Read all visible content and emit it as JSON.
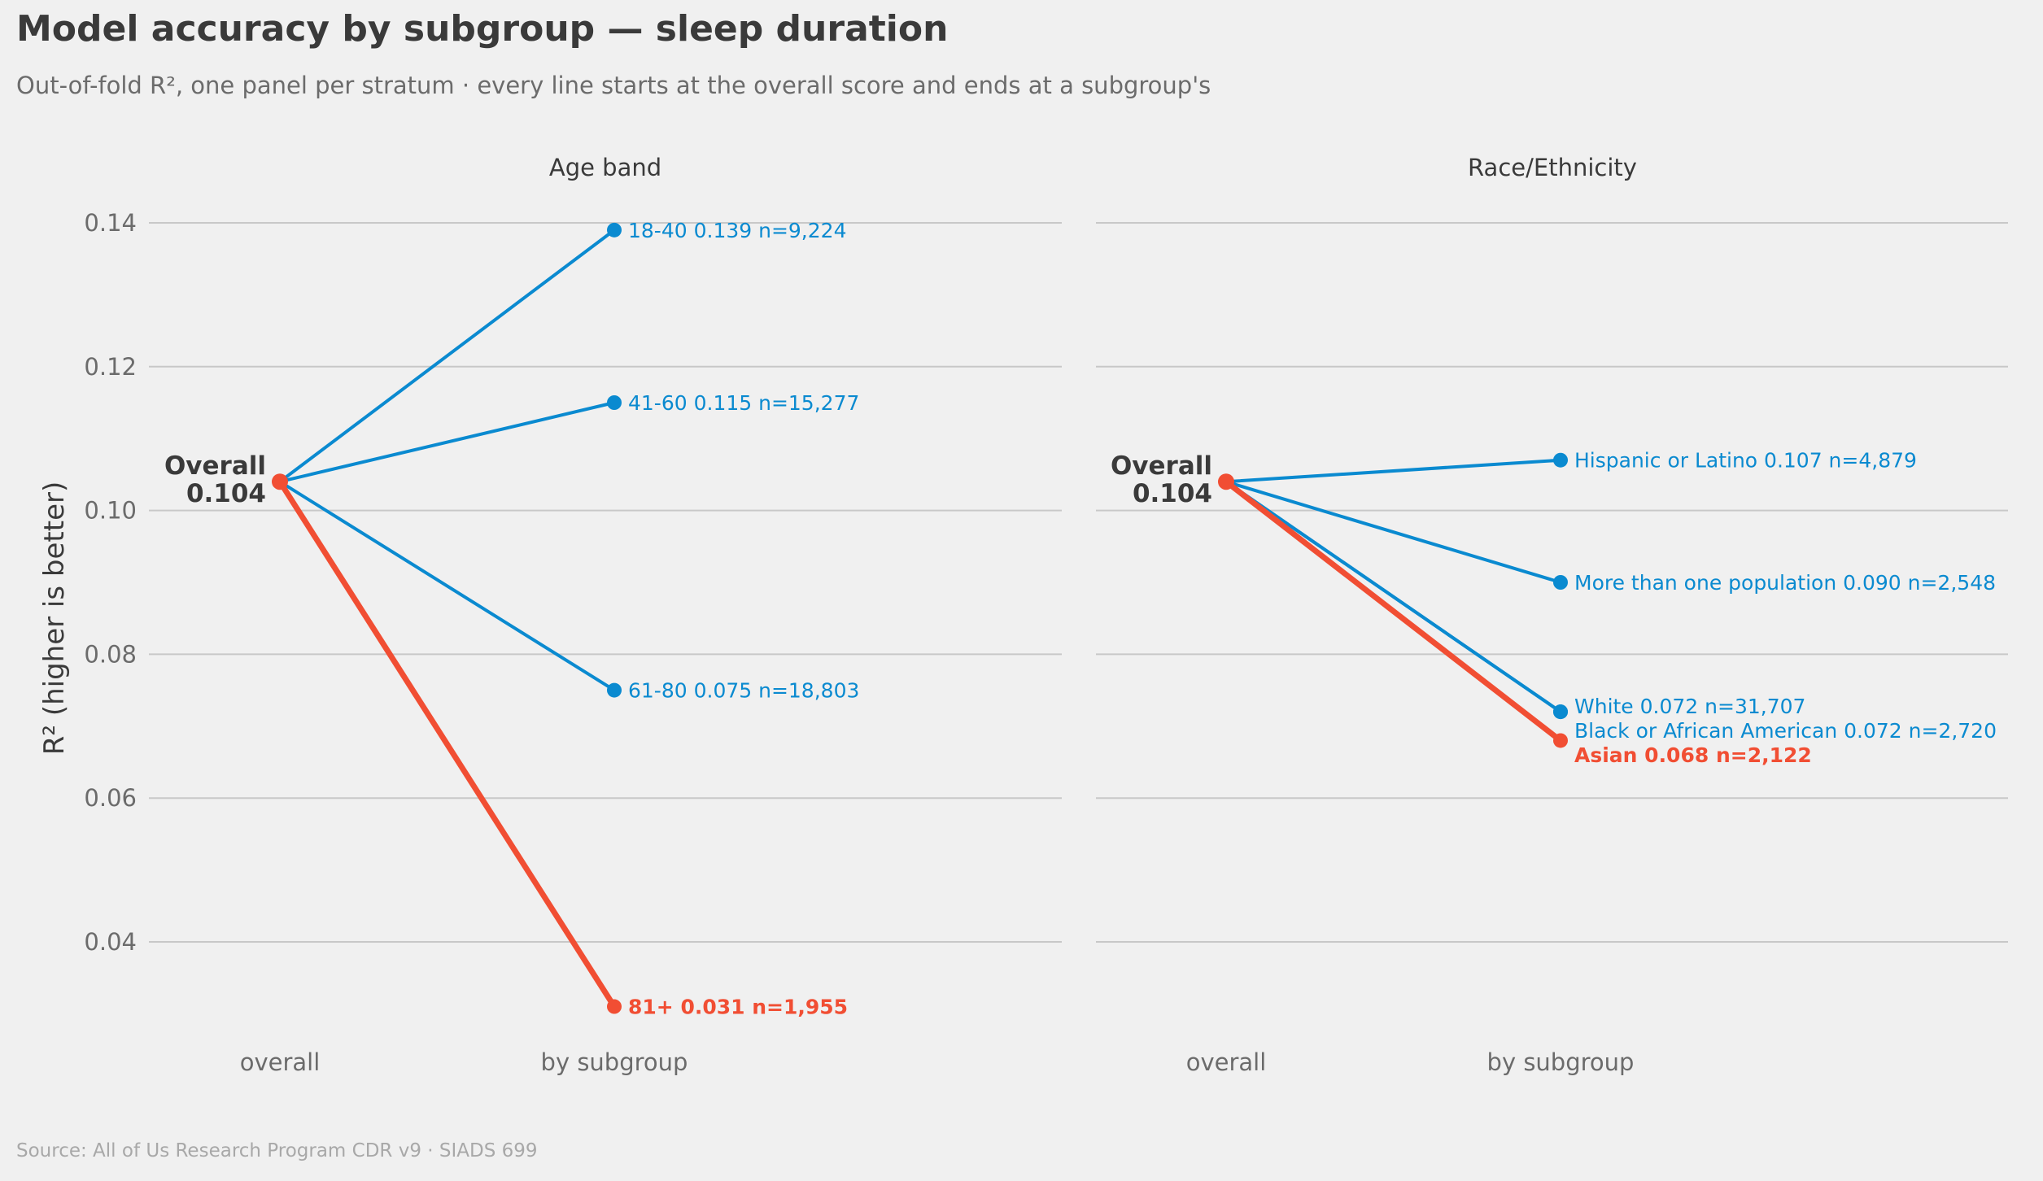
{
  "title": "Model accuracy by subgroup — sleep duration",
  "subtitle": "Out-of-fold R², one panel per stratum · every line starts at the overall score and ends at a subgroup's",
  "source": "Source: All of Us Research Program CDR v9 · SIADS 699",
  "colors": {
    "accent": "#0a8ad0",
    "highlight": "#f14e33",
    "text_dark": "#3a3a3a",
    "text_muted": "#6b6b6b",
    "grid": "#c8c8c8",
    "background": "#f0f0f0"
  },
  "chart_data": {
    "type": "line",
    "ylabel": "R²  (higher is better)",
    "ylim": [
      0.025,
      0.15
    ],
    "yticks": [
      0.04,
      0.06,
      0.08,
      0.1,
      0.12,
      0.14
    ],
    "ytick_labels": [
      "0.04",
      "0.06",
      "0.08",
      "0.10",
      "0.12",
      "0.14"
    ],
    "x_categories": [
      "overall",
      "by subgroup"
    ],
    "grid": "horizontal",
    "overall": {
      "label": "Overall",
      "value": 0.104,
      "value_label": "0.104"
    },
    "panels": [
      {
        "title": "Age band",
        "series": [
          {
            "name": "18-40",
            "value": 0.139,
            "n": "9,224",
            "label": "18-40  0.139  n=9,224",
            "highlight": false
          },
          {
            "name": "41-60",
            "value": 0.115,
            "n": "15,277",
            "label": "41-60  0.115  n=15,277",
            "highlight": false
          },
          {
            "name": "61-80",
            "value": 0.075,
            "n": "18,803",
            "label": "61-80  0.075  n=18,803",
            "highlight": false
          },
          {
            "name": "81+",
            "value": 0.031,
            "n": "1,955",
            "label": "81+  0.031  n=1,955",
            "highlight": true
          }
        ]
      },
      {
        "title": "Race/Ethnicity",
        "series": [
          {
            "name": "Hispanic or Latino",
            "value": 0.107,
            "n": "4,879",
            "label": "Hispanic or Latino  0.107  n=4,879",
            "highlight": false
          },
          {
            "name": "More than one population",
            "value": 0.09,
            "n": "2,548",
            "label": "More than one population  0.090  n=2,548",
            "highlight": false
          },
          {
            "name": "White",
            "value": 0.072,
            "n": "31,707",
            "label": "White  0.072  n=31,707",
            "highlight": false
          },
          {
            "name": "Black or African American",
            "value": 0.072,
            "n": "2,720",
            "label": "Black or African American  0.072  n=2,720",
            "highlight": false
          },
          {
            "name": "Asian",
            "value": 0.068,
            "n": "2,122",
            "label": "Asian  0.068  n=2,122",
            "highlight": true
          }
        ]
      }
    ]
  }
}
